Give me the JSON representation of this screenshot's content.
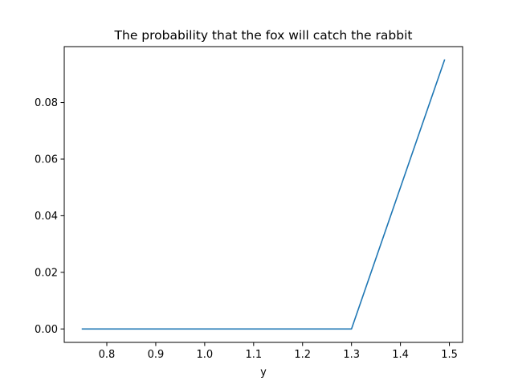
{
  "chart_data": {
    "type": "line",
    "title": "The probability that the fox will catch the rabbit",
    "xlabel": "y",
    "ylabel": "",
    "xlim": [
      0.713,
      1.527
    ],
    "ylim": [
      -0.00475,
      0.09975
    ],
    "xticks": [
      0.8,
      0.9,
      1.0,
      1.1,
      1.2,
      1.3,
      1.4,
      1.5
    ],
    "xtick_labels": [
      "0.8",
      "0.9",
      "1.0",
      "1.1",
      "1.2",
      "1.3",
      "1.4",
      "1.5"
    ],
    "yticks": [
      0.0,
      0.02,
      0.04,
      0.06,
      0.08
    ],
    "ytick_labels": [
      "0.00",
      "0.02",
      "0.04",
      "0.06",
      "0.08"
    ],
    "grid": false,
    "legend": "none",
    "series": [
      {
        "color": "#1f77b4",
        "x": [
          0.75,
          1.3,
          1.49
        ],
        "y": [
          0.0,
          0.0,
          0.095
        ]
      }
    ]
  }
}
